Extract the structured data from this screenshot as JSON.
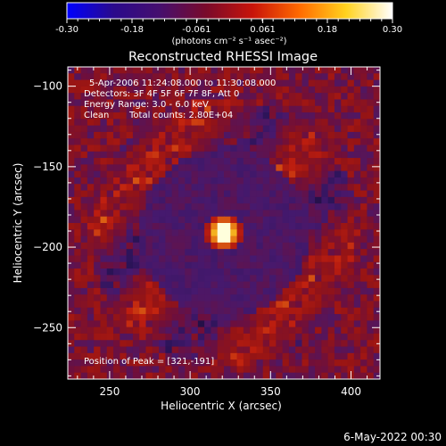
{
  "chart_data": {
    "type": "heatmap",
    "title": "Reconstructed RHESSI Image",
    "xlabel": "Heliocentric X (arcsec)",
    "ylabel": "Heliocentric Y (arcsec)",
    "xlim": [
      224,
      418
    ],
    "ylim": [
      -282,
      -88
    ],
    "x_ticks": [
      250,
      300,
      350,
      400
    ],
    "y_ticks": [
      -100,
      -150,
      -200,
      -250
    ],
    "colorbar": {
      "range": [
        -0.3,
        0.3
      ],
      "ticks": [
        "-0.30",
        "-0.18",
        "-0.061",
        "0.061",
        "0.18",
        "0.30"
      ],
      "tick_values": [
        -0.3,
        -0.18,
        -0.061,
        0.061,
        0.18,
        0.3
      ],
      "unit_label": "(photons cm⁻² s⁻¹ asec⁻²)",
      "stops": [
        "#0000ff",
        "#2a0a8c",
        "#460f6e",
        "#7a0a2a",
        "#c8140a",
        "#ff6a00",
        "#ffd21e",
        "#ffffff"
      ]
    },
    "annotations": {
      "time_range": "5-Apr-2006 11:24:08.000 to 11:30:08.000",
      "detectors": "Detectors: 3F 4F 5F 6F 7F 8F, Att 0",
      "energy": "Energy Range: 3.0 - 6.0 keV",
      "clean": "Clean",
      "total_counts": "Total counts: 2.80E+04",
      "peak": "Position of Peak = [321,-191]"
    },
    "peak": {
      "x": 321,
      "y": -191
    },
    "footer_date": "6-May-2022 00:30"
  }
}
